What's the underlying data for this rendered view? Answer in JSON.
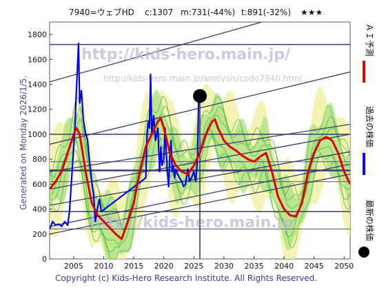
{
  "header": {
    "code_name": "7940=ウェブHD",
    "current": "c:1307",
    "median": "m:731(-44%)",
    "target": "t:891(-32%)",
    "stars": "★★★"
  },
  "left_label": "Generated on Monday 2026/1/5.",
  "watermark_main": "http://kids-hero.main.jp/",
  "watermark_sub": "http://kids-hero.main.jp/analysis/code7940.html",
  "watermark_bottom": "http://kids-hero.main.jp",
  "copyright": "Copyright (c) Kids-Hero Research Institute. All Rights Reserved.",
  "legend": {
    "ai": "ＡＩ予測",
    "past": "過去の株価",
    "latest": "最新の株価"
  },
  "colors": {
    "ai": "#e00000",
    "past": "#0000ee",
    "latest": "#000000",
    "band_outer": "#f3f0a0",
    "band_inner": "#a8e080",
    "band_line": "#3cb83c",
    "trend": "#3a3a6e"
  },
  "chart_data": {
    "type": "line",
    "x_ticks": [
      2005,
      2010,
      2015,
      2020,
      2025,
      2030,
      2035,
      2040,
      2045,
      2050
    ],
    "y_ticks": [
      0,
      200,
      400,
      600,
      800,
      1000,
      1200,
      1400,
      1600,
      1800
    ],
    "xlim": [
      2001,
      2051
    ],
    "ylim": [
      0,
      1900
    ],
    "latest_point": {
      "x": 2026.0,
      "y": 1307
    },
    "series": [
      {
        "key": "past",
        "values": [
          [
            2001.0,
            240
          ],
          [
            2001.5,
            300
          ],
          [
            2002.0,
            270
          ],
          [
            2002.5,
            280
          ],
          [
            2003.0,
            260
          ],
          [
            2003.5,
            300
          ],
          [
            2004.0,
            270
          ],
          [
            2004.3,
            380
          ],
          [
            2004.6,
            600
          ],
          [
            2004.9,
            820
          ],
          [
            2005.2,
            1050
          ],
          [
            2005.4,
            1300
          ],
          [
            2005.6,
            1500
          ],
          [
            2005.8,
            1730
          ],
          [
            2006.0,
            1250
          ],
          [
            2006.3,
            1350
          ],
          [
            2006.6,
            1120
          ],
          [
            2007.0,
            1000
          ],
          [
            2007.3,
            960
          ],
          [
            2007.6,
            800
          ],
          [
            2008.0,
            620
          ],
          [
            2008.3,
            520
          ],
          [
            2008.6,
            300
          ],
          [
            2009.0,
            420
          ],
          [
            2009.3,
            480
          ],
          [
            2009.6,
            380
          ],
          [
            2017.0,
            650
          ],
          [
            2017.2,
            1000
          ],
          [
            2017.4,
            1100
          ],
          [
            2017.6,
            1050
          ],
          [
            2017.8,
            1480
          ],
          [
            2018.0,
            1000
          ],
          [
            2018.3,
            1150
          ],
          [
            2018.6,
            950
          ],
          [
            2019.0,
            1050
          ],
          [
            2019.3,
            700
          ],
          [
            2019.5,
            900
          ],
          [
            2019.7,
            750
          ],
          [
            2020.0,
            800
          ],
          [
            2020.2,
            1050
          ],
          [
            2020.4,
            850
          ],
          [
            2020.6,
            700
          ],
          [
            2020.8,
            580
          ],
          [
            2021.0,
            820
          ],
          [
            2021.2,
            950
          ],
          [
            2021.4,
            700
          ],
          [
            2021.6,
            750
          ],
          [
            2021.8,
            650
          ],
          [
            2022.0,
            720
          ],
          [
            2022.3,
            680
          ],
          [
            2022.6,
            650
          ],
          [
            2023.0,
            620
          ],
          [
            2023.3,
            580
          ],
          [
            2023.6,
            600
          ],
          [
            2024.0,
            720
          ],
          [
            2024.3,
            620
          ],
          [
            2024.6,
            650
          ],
          [
            2025.0,
            700
          ],
          [
            2025.3,
            620
          ],
          [
            2025.6,
            800
          ],
          [
            2025.8,
            1307
          ]
        ]
      },
      {
        "key": "ai",
        "values": [
          [
            2001.0,
            560
          ],
          [
            2002.0,
            620
          ],
          [
            2003.0,
            700
          ],
          [
            2004.0,
            850
          ],
          [
            2005.0,
            1000
          ],
          [
            2005.5,
            1050
          ],
          [
            2006.0,
            1000
          ],
          [
            2007.0,
            700
          ],
          [
            2008.0,
            450
          ],
          [
            2009.0,
            350
          ],
          [
            2010.0,
            300
          ],
          [
            2011.0,
            250
          ],
          [
            2012.0,
            200
          ],
          [
            2013.0,
            160
          ],
          [
            2014.0,
            300
          ],
          [
            2015.0,
            450
          ],
          [
            2016.0,
            700
          ],
          [
            2017.0,
            900
          ],
          [
            2018.0,
            1000
          ],
          [
            2019.0,
            1100
          ],
          [
            2019.5,
            1130
          ],
          [
            2020.0,
            1050
          ],
          [
            2021.0,
            850
          ],
          [
            2022.0,
            750
          ],
          [
            2023.0,
            700
          ],
          [
            2024.0,
            680
          ],
          [
            2025.0,
            750
          ],
          [
            2026.0,
            850
          ],
          [
            2027.0,
            1000
          ],
          [
            2028.0,
            1100
          ],
          [
            2028.5,
            1120
          ],
          [
            2029.0,
            1050
          ],
          [
            2030.0,
            950
          ],
          [
            2031.0,
            900
          ],
          [
            2032.0,
            870
          ],
          [
            2033.0,
            830
          ],
          [
            2034.0,
            800
          ],
          [
            2035.0,
            780
          ],
          [
            2036.0,
            820
          ],
          [
            2037.0,
            850
          ],
          [
            2038.0,
            700
          ],
          [
            2039.0,
            500
          ],
          [
            2040.0,
            400
          ],
          [
            2041.0,
            350
          ],
          [
            2042.0,
            340
          ],
          [
            2043.0,
            450
          ],
          [
            2044.0,
            700
          ],
          [
            2045.0,
            850
          ],
          [
            2046.0,
            950
          ],
          [
            2047.0,
            980
          ],
          [
            2048.0,
            950
          ],
          [
            2049.0,
            850
          ],
          [
            2050.0,
            700
          ],
          [
            2051.0,
            600
          ]
        ]
      }
    ]
  }
}
